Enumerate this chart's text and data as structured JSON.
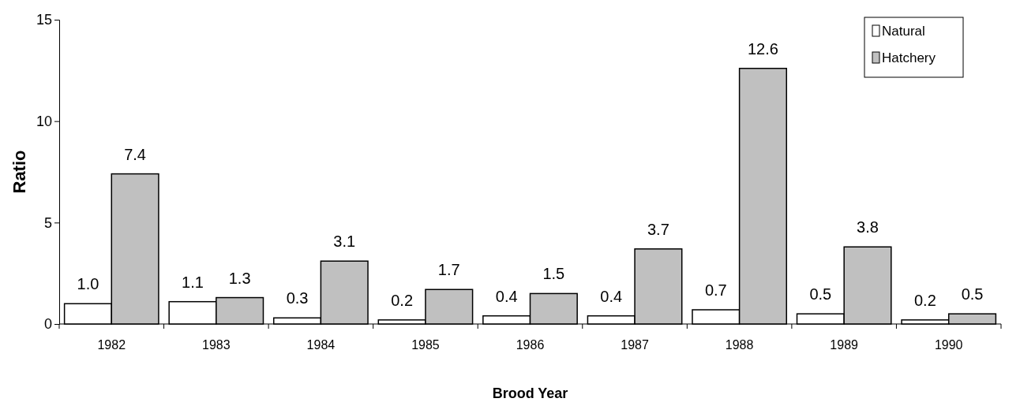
{
  "chart_data": {
    "type": "bar",
    "xlabel": "Brood Year",
    "ylabel": "Ratio",
    "categories": [
      "1982",
      "1983",
      "1984",
      "1985",
      "1986",
      "1987",
      "1988",
      "1989",
      "1990"
    ],
    "series": [
      {
        "name": "Natural",
        "color": "#ffffff",
        "values": [
          1.0,
          1.1,
          0.3,
          0.2,
          0.4,
          0.4,
          0.7,
          0.5,
          0.2
        ],
        "value_labels": [
          "1.0",
          "1.1",
          "0.3",
          "0.2",
          "0.4",
          "0.4",
          "0.7",
          "0.5",
          "0.2"
        ]
      },
      {
        "name": "Hatchery",
        "color": "#c0c0c0",
        "values": [
          7.4,
          1.3,
          3.1,
          1.7,
          1.5,
          3.7,
          12.6,
          3.8,
          0.5
        ],
        "value_labels": [
          "7.4",
          "1.3",
          "3.1",
          "1.7",
          "1.5",
          "3.7",
          "12.6",
          "3.8",
          "0.5"
        ]
      }
    ],
    "ylim": [
      0,
      15
    ],
    "yticks": [
      0,
      5,
      10,
      15
    ],
    "grid": false,
    "legend": "top right"
  }
}
